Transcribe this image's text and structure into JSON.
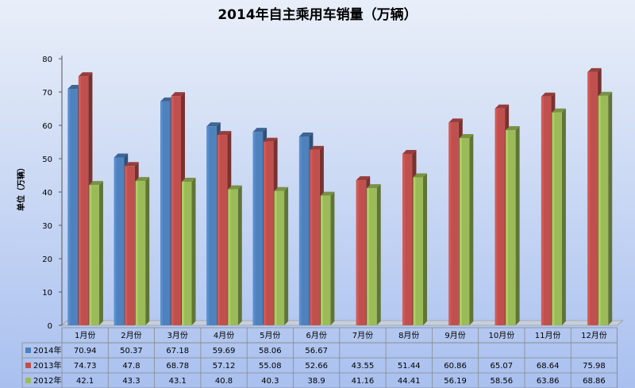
{
  "chart_data": {
    "type": "bar",
    "title": "2014年自主乘用车销量（万辆）",
    "ylabel": "单位（万辆）",
    "xlabel": "",
    "ylim": [
      0,
      80
    ],
    "yticks": [
      0,
      10,
      20,
      30,
      40,
      50,
      60,
      70,
      80
    ],
    "grid": false,
    "legend": "table-below",
    "categories": [
      "1月份",
      "2月份",
      "3月份",
      "4月份",
      "5月份",
      "6月份",
      "7月份",
      "8月份",
      "9月份",
      "10月份",
      "11月份",
      "12月份"
    ],
    "series": [
      {
        "name": "2014年",
        "color": "#4f81bd",
        "values": [
          70.94,
          50.37,
          67.18,
          59.69,
          58.06,
          56.67,
          null,
          null,
          null,
          null,
          null,
          null
        ]
      },
      {
        "name": "2013年",
        "color": "#c0504d",
        "values": [
          74.73,
          47.8,
          68.78,
          57.12,
          55.08,
          52.66,
          43.55,
          51.44,
          60.86,
          65.07,
          68.64,
          75.98
        ]
      },
      {
        "name": "2012年",
        "color": "#9bbb59",
        "values": [
          42.1,
          43.3,
          43.1,
          40.8,
          40.3,
          38.9,
          41.16,
          44.41,
          56.19,
          58.56,
          63.86,
          68.86
        ]
      }
    ]
  },
  "colors": {
    "background_top": "#e9eff9",
    "background_bottom": "#a9c0ef",
    "axis": "#555555",
    "table_border": "#8a8a8a"
  }
}
